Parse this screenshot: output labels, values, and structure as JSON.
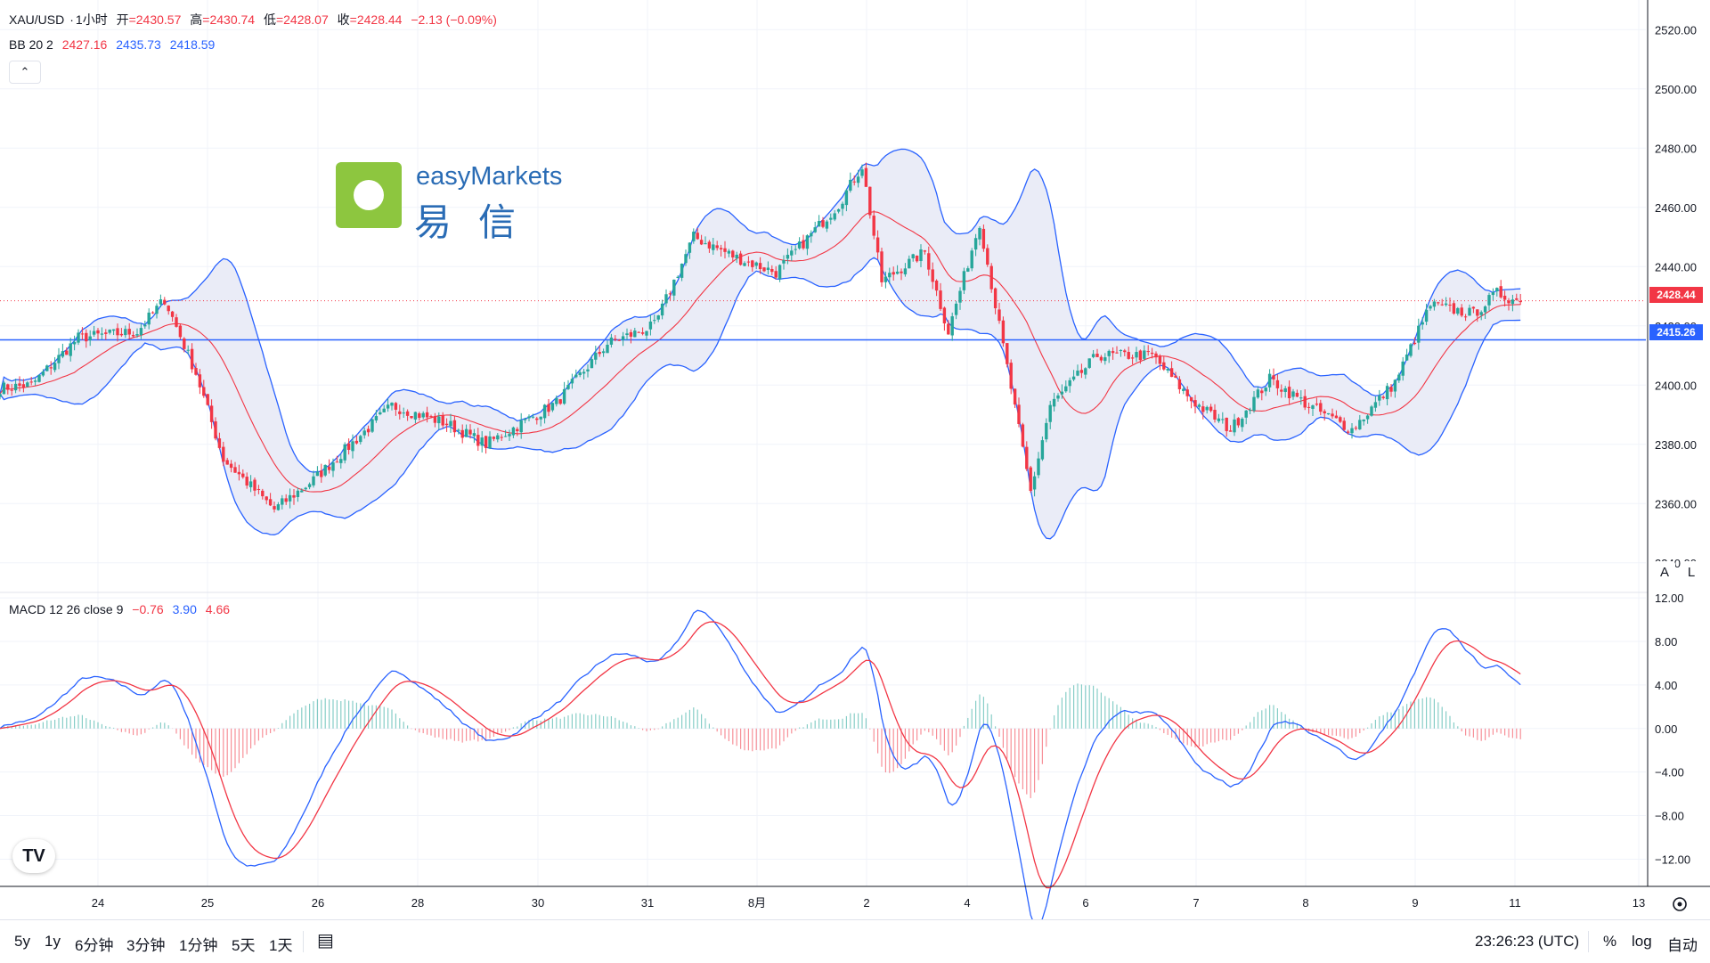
{
  "header": {
    "symbol": "XAU/USD",
    "dot": "·",
    "interval": "1小时",
    "open_label": "开",
    "open_value": "=2430.57",
    "high_label": "高",
    "high_value": "=2430.74",
    "low_label": "低",
    "low_value": "=2428.07",
    "close_label": "收",
    "close_value": "=2428.44",
    "change": "−2.13 (−0.09%)"
  },
  "bb_legend": {
    "name": "BB 20 2",
    "basis": "2427.16",
    "upper": "2435.73",
    "lower": "2418.59"
  },
  "macd_legend": {
    "name": "MACD 12 26 close 9",
    "histogram": "−0.76",
    "macd": "3.90",
    "signal": "4.66"
  },
  "collapse_icon": "chevron-up-icon",
  "collapse_glyph": "⌃",
  "price_tags": {
    "last": "2428.44",
    "line": "2415.26"
  },
  "scale_buttons": {
    "a": "A",
    "l": "L"
  },
  "watermark": {
    "brand": "easyMarkets",
    "cn1": "易",
    "cn2": "信"
  },
  "tv_logo": "TV",
  "bottom": {
    "ranges": [
      "5y",
      "1y",
      "6分钟",
      "3分钟",
      "1分钟",
      "5天",
      "1天"
    ],
    "compare_icon": "calendar-range-icon",
    "compare_glyph": "▤",
    "clock": "23:26:23 (UTC)",
    "pct": "%",
    "log": "log",
    "auto": "自动"
  },
  "colors": {
    "up": "#26a69a",
    "down": "#f23645",
    "bb_basis": "#f23645",
    "bb_band": "#2962ff",
    "bb_fill": "#e8eaf6",
    "macd": "#2962ff",
    "signal": "#f23645",
    "hline": "#2962ff"
  },
  "chart_data": [
    {
      "type": "candlestick",
      "y_ticks": [
        2340,
        2360,
        2380,
        2400,
        2420,
        2440,
        2460,
        2480,
        2500,
        2520
      ],
      "ylim": [
        2330,
        2530
      ],
      "x_tick_labels": [
        "24",
        "25",
        "26",
        "28",
        "30",
        "31",
        "8月",
        "2",
        "4",
        "6",
        "7",
        "8",
        "9",
        "11",
        "13"
      ],
      "horizontal_line": 2415.26,
      "last_price": 2428.44,
      "close_waypoints": [
        [
          0,
          2399
        ],
        [
          8,
          2400
        ],
        [
          20,
          2416
        ],
        [
          35,
          2418
        ],
        [
          42,
          2429
        ],
        [
          50,
          2404
        ],
        [
          57,
          2375
        ],
        [
          70,
          2358
        ],
        [
          80,
          2368
        ],
        [
          100,
          2393
        ],
        [
          114,
          2387
        ],
        [
          124,
          2380
        ],
        [
          142,
          2394
        ],
        [
          155,
          2414
        ],
        [
          167,
          2420
        ],
        [
          177,
          2450
        ],
        [
          188,
          2443
        ],
        [
          198,
          2438
        ],
        [
          214,
          2461
        ],
        [
          220,
          2474
        ],
        [
          225,
          2435
        ],
        [
          236,
          2445
        ],
        [
          242,
          2418
        ],
        [
          250,
          2455
        ],
        [
          256,
          2413
        ],
        [
          263,
          2364
        ],
        [
          268,
          2393
        ],
        [
          280,
          2410
        ],
        [
          294,
          2410
        ],
        [
          304,
          2395
        ],
        [
          314,
          2385
        ],
        [
          324,
          2402
        ],
        [
          334,
          2393
        ],
        [
          345,
          2385
        ],
        [
          356,
          2401
        ],
        [
          365,
          2427
        ],
        [
          376,
          2424
        ],
        [
          382,
          2431
        ],
        [
          388,
          2428
        ]
      ],
      "bb": {
        "period": 20,
        "mult": 2
      }
    },
    {
      "type": "macd",
      "y_ticks": [
        -12,
        -8,
        -4,
        0,
        4,
        8,
        12
      ],
      "ylim": [
        -14.5,
        12.5
      ],
      "fast": 12,
      "slow": 26,
      "signal": 9
    }
  ]
}
